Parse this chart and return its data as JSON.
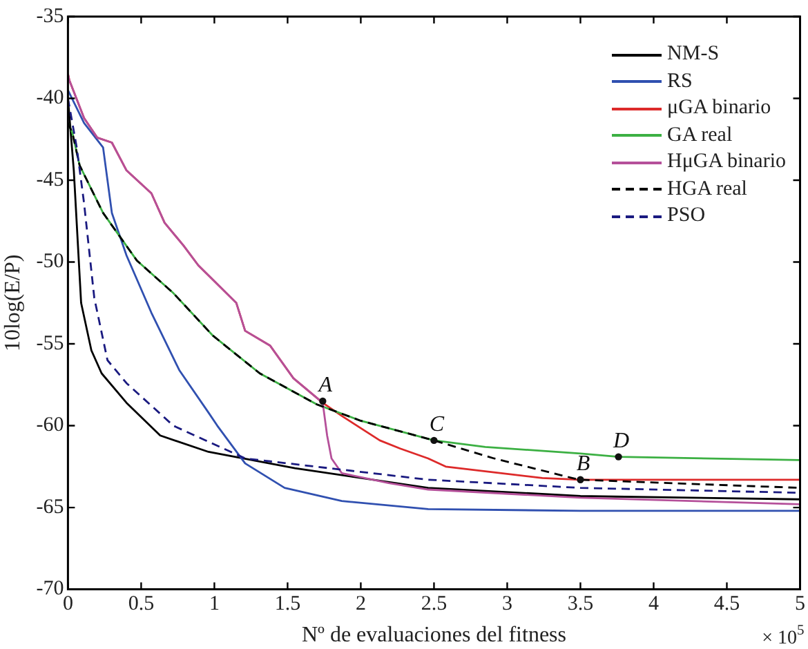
{
  "chart_data": {
    "type": "line",
    "xlabel": "Nº de evaluaciones del fitness",
    "ylabel": "10log(E/P)",
    "xlim": [
      0,
      5
    ],
    "ylim": [
      -70,
      -35
    ],
    "xticks": [
      0,
      0.5,
      1,
      1.5,
      2,
      2.5,
      3,
      3.5,
      4,
      4.5,
      5
    ],
    "yticks": [
      -70,
      -65,
      -60,
      -55,
      -50,
      -45,
      -40,
      -35
    ],
    "grid": false,
    "legend": "top right",
    "marker": "none",
    "annotations": [
      "× 10$^{5}$",
      {
        "text": "A",
        "x": 1.74,
        "y": -58.5
      },
      {
        "text": "B",
        "x": 3.5,
        "y": -63.3
      },
      {
        "text": "C",
        "x": 2.5,
        "y": -60.9
      },
      {
        "text": "D",
        "x": 3.76,
        "y": -61.9
      }
    ],
    "series": [
      {
        "name": "NM-S",
        "color": "#000000",
        "x": [
          0,
          0.04,
          0.09,
          0.16,
          0.23,
          0.4,
          0.63,
          0.96,
          1.55,
          2.46,
          3.5,
          5
        ],
        "values": [
          -40,
          -44.4,
          -52.5,
          -55.4,
          -56.8,
          -58.6,
          -60.6,
          -61.6,
          -62.6,
          -63.8,
          -64.3,
          -64.5
        ]
      },
      {
        "name": "RS",
        "color": "#3050b0",
        "x": [
          0,
          0.11,
          0.24,
          0.3,
          0.4,
          0.57,
          0.76,
          0.96,
          1.02,
          1.21,
          1.48,
          1.87,
          2.46,
          3.5,
          5
        ],
        "values": [
          -39.5,
          -41.5,
          -43,
          -47,
          -49.6,
          -53.1,
          -56.6,
          -59.2,
          -60,
          -62.3,
          -63.8,
          -64.6,
          -65.1,
          -65.2,
          -65.2
        ]
      },
      {
        "name": "μGA binario",
        "color": "#dd2a2a",
        "x": [
          0,
          0.01,
          0.11,
          0.2,
          0.3,
          0.4,
          0.57,
          0.66,
          0.79,
          0.89,
          1.15,
          1.21,
          1.38,
          1.54,
          1.74,
          1.87,
          2.13,
          2.27,
          2.46,
          2.58,
          3.24,
          3.5,
          5
        ],
        "values": [
          -38.5,
          -38.9,
          -41.2,
          -42.4,
          -42.7,
          -44.4,
          -45.8,
          -47.6,
          -49,
          -50.2,
          -52.5,
          -54.2,
          -55.1,
          -57.1,
          -58.6,
          -59.4,
          -60.9,
          -61.4,
          -62,
          -62.5,
          -63.2,
          -63.3,
          -63.3
        ]
      },
      {
        "name": "GA real",
        "color": "#3cb043",
        "x": [
          0,
          0.03,
          0.08,
          0.24,
          0.47,
          0.72,
          0.99,
          1.31,
          1.7,
          2,
          2.46,
          2.5,
          2.85,
          3.5,
          3.76,
          5
        ],
        "values": [
          -41.5,
          -42.1,
          -44.1,
          -47,
          -49.9,
          -51.9,
          -54.5,
          -56.8,
          -58.7,
          -59.7,
          -60.8,
          -60.9,
          -61.3,
          -61.7,
          -61.9,
          -62.1
        ]
      },
      {
        "name": "HμGA binario",
        "color": "#b5509a",
        "x": [
          0,
          0.01,
          0.11,
          0.2,
          0.3,
          0.4,
          0.57,
          0.66,
          0.79,
          0.89,
          1.15,
          1.21,
          1.38,
          1.54,
          1.74,
          1.77,
          1.8,
          1.87,
          2.19,
          2.46,
          3.5,
          5
        ],
        "values": [
          -38.5,
          -38.9,
          -41.2,
          -42.4,
          -42.7,
          -44.4,
          -45.8,
          -47.6,
          -49,
          -50.2,
          -52.5,
          -54.2,
          -55.1,
          -57.1,
          -58.6,
          -60.6,
          -62,
          -62.9,
          -63.5,
          -63.9,
          -64.4,
          -64.8
        ]
      },
      {
        "name": "HGA real",
        "color": "#000000",
        "line_style": "dashed",
        "x": [
          0,
          0.03,
          0.08,
          0.24,
          0.47,
          0.72,
          0.99,
          1.31,
          1.7,
          2,
          2.46,
          2.5,
          2.91,
          3.49,
          5
        ],
        "values": [
          -41.5,
          -42.1,
          -44.1,
          -47,
          -49.9,
          -51.9,
          -54.5,
          -56.8,
          -58.7,
          -59.7,
          -60.8,
          -60.9,
          -62,
          -63.3,
          -63.8
        ]
      },
      {
        "name": "PSO",
        "color": "#1a1a80",
        "line_style": "dashed",
        "x": [
          0,
          0.06,
          0.11,
          0.18,
          0.27,
          0.4,
          0.72,
          1.21,
          2.46,
          3.5,
          5
        ],
        "values": [
          -40,
          -43,
          -46.4,
          -52.2,
          -56,
          -57.4,
          -60,
          -62,
          -63.3,
          -63.8,
          -64.1
        ]
      }
    ]
  }
}
